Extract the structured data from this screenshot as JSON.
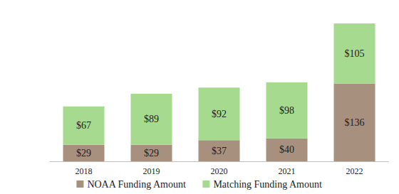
{
  "chart_data": {
    "type": "bar",
    "stacked": true,
    "data_labels": true,
    "grid": false,
    "tick_labels": "x",
    "legend": "bottom",
    "categories": [
      "2018",
      "2019",
      "2020",
      "2021",
      "2022"
    ],
    "ylim": [
      0,
      241
    ],
    "series": [
      {
        "name": "NOAA Funding Amount",
        "color": "#a8907f",
        "values": [
          29,
          29,
          37,
          40,
          136
        ],
        "value_labels": [
          "$29",
          "$29",
          "$37",
          "$40",
          "$136"
        ]
      },
      {
        "name": "Matching Funding Amount",
        "color": "#a6da8f",
        "values": [
          67,
          89,
          92,
          98,
          105
        ],
        "value_labels": [
          "$67",
          "$89",
          "$92",
          "$98",
          "$105"
        ]
      }
    ]
  }
}
